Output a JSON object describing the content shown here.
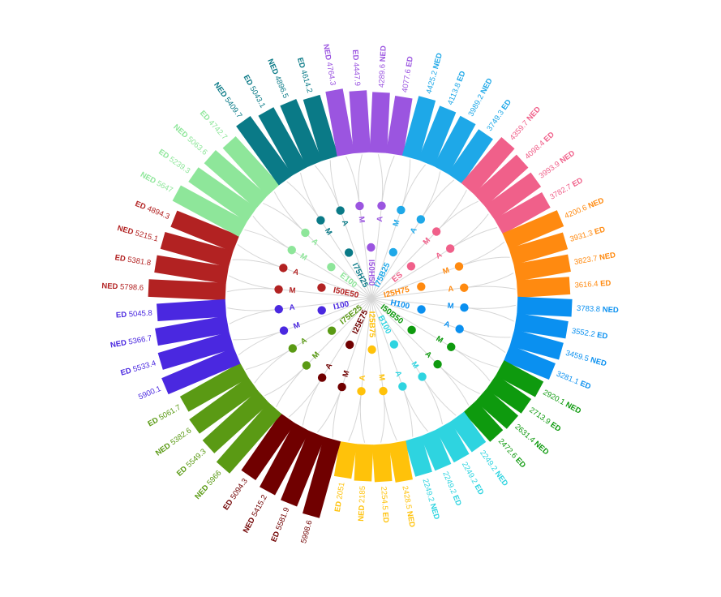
{
  "chart_data": {
    "type": "radial-bar",
    "groups": [
      {
        "name": "I50E50",
        "color": "#b22222",
        "bars": [
          {
            "tag": "NED",
            "value": 5798.6
          },
          {
            "tag": "ED",
            "value": 5381.8
          },
          {
            "tag": "NED",
            "value": 5215.1
          },
          {
            "tag": "ED",
            "value": 4894.3
          }
        ],
        "leaves": [
          "M",
          "A"
        ]
      },
      {
        "name": "E100",
        "color": "#8ee69a",
        "bars": [
          {
            "tag": "NED",
            "value": 5647
          },
          {
            "tag": "ED",
            "value": 5239.3
          },
          {
            "tag": "NED",
            "value": 5063.6
          },
          {
            "tag": "ED",
            "value": 4742.7
          }
        ],
        "leaves": [
          "M",
          "A"
        ]
      },
      {
        "name": "I75H25",
        "color": "#0a7a87",
        "bars": [
          {
            "tag": "NED",
            "value": 5409.7
          },
          {
            "tag": "ED",
            "value": 5043.1
          },
          {
            "tag": "NED",
            "value": 4896.5
          },
          {
            "tag": "ED",
            "value": 4614.2
          }
        ],
        "leaves": [
          "M",
          "A"
        ]
      },
      {
        "name": "I50H50",
        "color": "#9b55e0",
        "bars": [
          {
            "tag": "NED",
            "value": 4764.3
          },
          {
            "tag": "ED",
            "value": 4447.9
          },
          {
            "tag": "NED",
            "value": 4289.6
          },
          {
            "tag": "ED",
            "value": 4077.6
          }
        ],
        "leaves": [
          "M",
          "A"
        ]
      },
      {
        "name": "I75B25",
        "color": "#1ea8e8",
        "bars": [
          {
            "tag": "NED",
            "value": 4425.2
          },
          {
            "tag": "ED",
            "value": 4113.8
          },
          {
            "tag": "NED",
            "value": 3989.2
          },
          {
            "tag": "ED",
            "value": 3749.3
          }
        ],
        "leaves": [
          "M",
          "A"
        ]
      },
      {
        "name": "ES",
        "color": "#f0608a",
        "bars": [
          {
            "tag": "NED",
            "value": 4359.7
          },
          {
            "tag": "ED",
            "value": 4098.4
          },
          {
            "tag": "NED",
            "value": 3993.9
          },
          {
            "tag": "ED",
            "value": 3782.7
          }
        ],
        "leaves": [
          "M",
          "A"
        ]
      },
      {
        "name": "I25H75",
        "color": "#ff8a10",
        "bars": [
          {
            "tag": "NED",
            "value": 4200.6
          },
          {
            "tag": "ED",
            "value": 3931.3
          },
          {
            "tag": "NED",
            "value": 3823.7
          },
          {
            "tag": "ED",
            "value": 3616.4
          }
        ],
        "leaves": [
          "M",
          "A"
        ]
      },
      {
        "name": "H100",
        "color": "#0a90f0",
        "bars": [
          {
            "tag": "NED",
            "value": 3783.8
          },
          {
            "tag": "ED",
            "value": 3552.2
          },
          {
            "tag": "NED",
            "value": 3459.5
          },
          {
            "tag": "ED",
            "value": 3281.1
          }
        ],
        "leaves": [
          "M",
          "A"
        ]
      },
      {
        "name": "I50B50",
        "color": "#0e9a0e",
        "bars": [
          {
            "tag": "NED",
            "value": 2920.1
          },
          {
            "tag": "ED",
            "value": 2713.9
          },
          {
            "tag": "NED",
            "value": 2631.4
          },
          {
            "tag": "ED",
            "value": 2472.6
          }
        ],
        "leaves": [
          "M",
          "A"
        ]
      },
      {
        "name": "B100",
        "color": "#2ed4e0",
        "bars": [
          {
            "tag": "NED",
            "value": 2249.2
          },
          {
            "tag": "ED",
            "value": 2249.2
          },
          {
            "tag": "ED",
            "value": 2249.2
          },
          {
            "tag": "NED",
            "value": 2249.2
          }
        ],
        "leaves": [
          "M",
          "A"
        ]
      },
      {
        "name": "I25B75",
        "color": "#ffc20a",
        "bars": [
          {
            "tag": "NED",
            "value": 2428.5
          },
          {
            "tag": "ED",
            "value": 2254.5
          },
          {
            "tag": "NED",
            "value": 2185
          },
          {
            "tag": "ED",
            "value": 2051
          }
        ],
        "leaves": [
          "M",
          "A"
        ]
      },
      {
        "name": "I25E75",
        "color": "#700000",
        "bars": [
          {
            "tag": "",
            "value": 5998.6
          },
          {
            "tag": "ED",
            "value": 5581.9
          },
          {
            "tag": "NED",
            "value": 5415.2
          },
          {
            "tag": "ED",
            "value": 5094.3
          }
        ],
        "leaves": [
          "M",
          "A"
        ]
      },
      {
        "name": "I75E25",
        "color": "#5a9a14",
        "bars": [
          {
            "tag": "NED",
            "value": 5966
          },
          {
            "tag": "ED",
            "value": 5549.3
          },
          {
            "tag": "NED",
            "value": 5382.6
          },
          {
            "tag": "ED",
            "value": 5061.7
          }
        ],
        "leaves": [
          "M",
          "A"
        ]
      },
      {
        "name": "I100",
        "color": "#4a28e0",
        "bars": [
          {
            "tag": "",
            "value": 5900.1
          },
          {
            "tag": "ED",
            "value": 5533.4
          },
          {
            "tag": "NED",
            "value": 5366.7
          },
          {
            "tag": "ED",
            "value": 5045.8
          }
        ],
        "leaves": [
          "M",
          "A"
        ]
      }
    ]
  }
}
